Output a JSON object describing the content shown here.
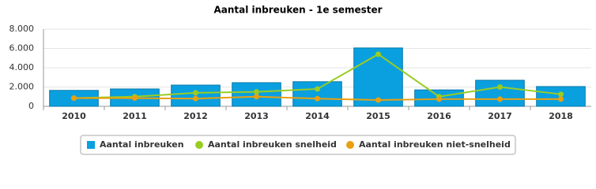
{
  "chart_data": {
    "type": "bar",
    "title": "Aantal inbreuken - 1e semester",
    "categories": [
      "2010",
      "2011",
      "2012",
      "2013",
      "2014",
      "2015",
      "2016",
      "2017",
      "2018"
    ],
    "series": [
      {
        "name": "Aantal inbreuken",
        "type": "bar",
        "color": "#0aa0e0",
        "values": [
          1650,
          1800,
          2200,
          2450,
          2550,
          6050,
          1700,
          2700,
          2050
        ]
      },
      {
        "name": "Aantal inbreuken snelheid",
        "type": "line",
        "color": "#99cc22",
        "values": [
          850,
          1000,
          1400,
          1500,
          1800,
          5400,
          1000,
          2000,
          1250
        ]
      },
      {
        "name": "Aantal inbreuken niet-snelheid",
        "type": "line",
        "color": "#e8a010",
        "values": [
          850,
          850,
          800,
          1000,
          800,
          650,
          750,
          750,
          750
        ]
      }
    ],
    "ylim": [
      0,
      8000
    ],
    "yticks": [
      0,
      {
        "value": 2000,
        "label": "2.000"
      },
      {
        "value": 4000,
        "label": "4.000"
      },
      {
        "value": 6000,
        "label": "6.000"
      },
      {
        "value": 8000,
        "label": "8.000"
      }
    ],
    "grid": true,
    "legend": "bottom"
  }
}
